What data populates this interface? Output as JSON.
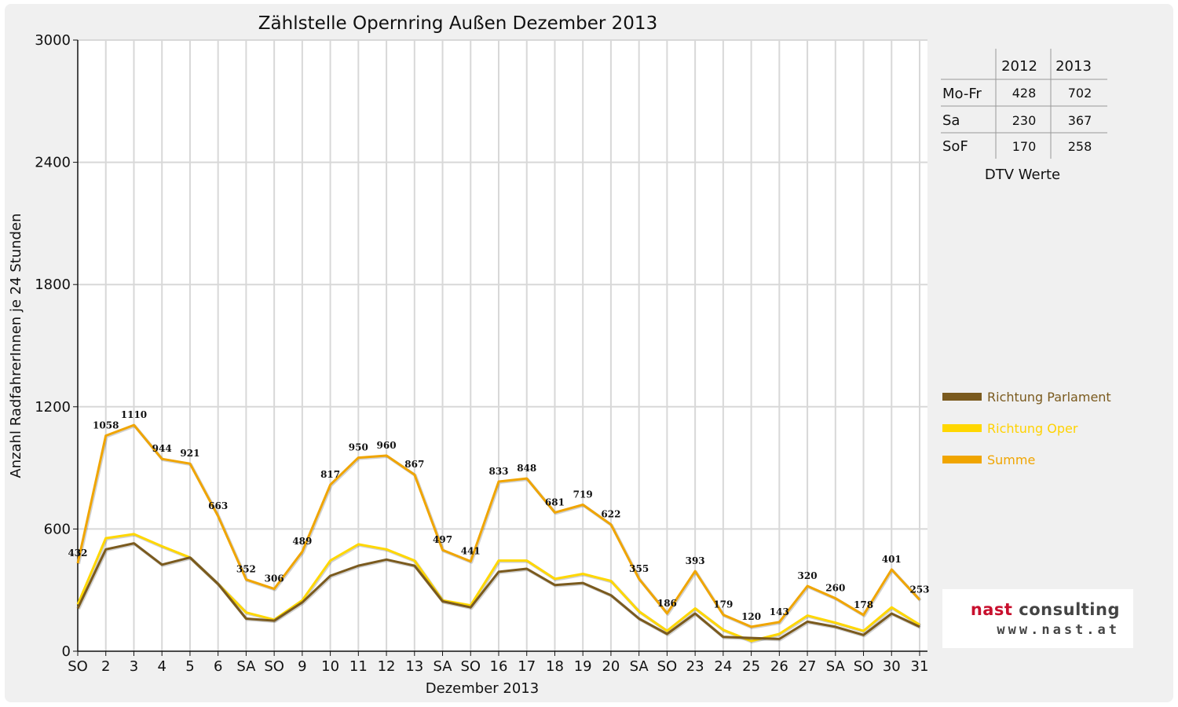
{
  "chart_data": {
    "type": "line",
    "title": "Zählstelle Opernring Außen Dezember 2013",
    "xlabel": "Dezember 2013",
    "ylabel": "Anzahl RadfahrerInnen je 24 Stunden",
    "ylim": [
      0,
      3000
    ],
    "yticks": [
      0,
      600,
      1200,
      1800,
      2400,
      3000
    ],
    "grid": true,
    "legend_position": "right",
    "categories": [
      "SO",
      "2",
      "3",
      "4",
      "5",
      "6",
      "SA",
      "SO",
      "9",
      "10",
      "11",
      "12",
      "13",
      "SA",
      "SO",
      "16",
      "17",
      "18",
      "19",
      "20",
      "SA",
      "SO",
      "23",
      "24",
      "25",
      "26",
      "27",
      "SA",
      "SO",
      "30",
      "31"
    ],
    "red_categories": [
      0,
      7,
      14,
      21,
      24,
      25,
      28
    ],
    "series": [
      {
        "name": "Richtung Parlament",
        "color": "#7a5a1e",
        "values": [
          210,
          500,
          530,
          425,
          460,
          330,
          160,
          150,
          240,
          370,
          420,
          450,
          420,
          245,
          215,
          390,
          405,
          325,
          335,
          275,
          160,
          85,
          185,
          70,
          65,
          60,
          145,
          120,
          80,
          185,
          120
        ]
      },
      {
        "name": "Richtung Oper",
        "color": "#ffd700",
        "values": [
          230,
          555,
          575,
          515,
          460,
          330,
          190,
          155,
          250,
          445,
          525,
          500,
          445,
          250,
          225,
          445,
          445,
          355,
          380,
          345,
          195,
          100,
          210,
          105,
          50,
          85,
          175,
          140,
          100,
          215,
          130
        ]
      },
      {
        "name": "Summe",
        "color": "#f0a500",
        "values": [
          432,
          1058,
          1110,
          944,
          921,
          663,
          352,
          306,
          489,
          817,
          950,
          960,
          867,
          497,
          441,
          833,
          848,
          681,
          719,
          622,
          355,
          186,
          393,
          179,
          120,
          143,
          320,
          260,
          178,
          401,
          253
        ]
      }
    ],
    "data_labels": [
      "432",
      "1058",
      "1110",
      "944",
      "921",
      "663",
      "352",
      "306",
      "489",
      "817",
      "950",
      "960",
      "867",
      "497",
      "441",
      "833",
      "848",
      "681",
      "719",
      "622",
      "355",
      "186",
      "393",
      "179",
      "120",
      "143",
      "320",
      "260",
      "178",
      "401",
      "253"
    ]
  },
  "dtv_table": {
    "years": [
      "2012",
      "2013"
    ],
    "rows": [
      {
        "label": "Mo-Fr",
        "v2012": "428",
        "v2013": "702"
      },
      {
        "label": "Sa",
        "v2012": "230",
        "v2013": "367"
      },
      {
        "label": "SoF",
        "v2012": "170",
        "v2013": "258"
      }
    ],
    "caption": "DTV Werte"
  },
  "logo": {
    "brand_a": "nast",
    "brand_b": "consulting",
    "url": "www.nast.at"
  },
  "colors": {
    "background": "#f0f0f0",
    "grid": "#d8d8d8",
    "sunday_holiday": "#e00000"
  }
}
